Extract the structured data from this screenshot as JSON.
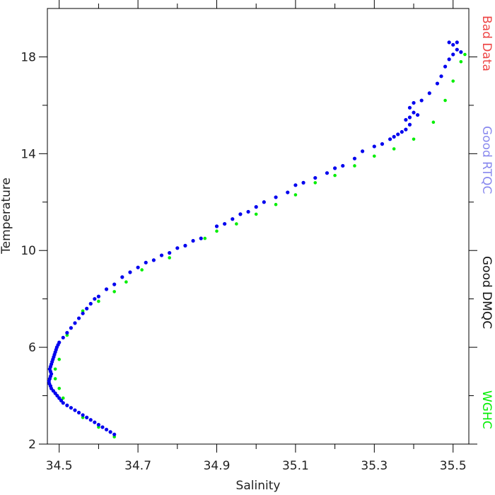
{
  "chart_data": {
    "type": "scatter",
    "xlabel": "Salinity",
    "ylabel": "Temperature",
    "xlim": [
      34.47,
      35.54
    ],
    "ylim": [
      2,
      20
    ],
    "xticks": [
      34.5,
      34.7,
      34.9,
      35.1,
      35.3,
      35.5
    ],
    "xtick_labels": [
      "34.5",
      "34.7",
      "34.9",
      "35.1",
      "35.3",
      "35.5"
    ],
    "x_minor_ticks": [
      34.6,
      34.8,
      35.0,
      35.2,
      35.4
    ],
    "yticks": [
      2,
      6,
      10,
      14,
      18
    ],
    "ytick_labels": [
      "2",
      "6",
      "10",
      "14",
      "18"
    ],
    "y_minor_ticks": [
      4,
      8,
      12,
      16
    ],
    "grid": false,
    "legend_position": "right-vertical",
    "series": [
      {
        "name": "Good RTQC",
        "color": "#0000ee",
        "points": [
          [
            34.64,
            2.4
          ],
          [
            34.63,
            2.5
          ],
          [
            34.62,
            2.6
          ],
          [
            34.61,
            2.7
          ],
          [
            34.6,
            2.8
          ],
          [
            34.59,
            2.9
          ],
          [
            34.58,
            3.0
          ],
          [
            34.57,
            3.1
          ],
          [
            34.56,
            3.2
          ],
          [
            34.55,
            3.3
          ],
          [
            34.54,
            3.4
          ],
          [
            34.53,
            3.5
          ],
          [
            34.52,
            3.6
          ],
          [
            34.51,
            3.7
          ],
          [
            34.505,
            3.8
          ],
          [
            34.5,
            3.9
          ],
          [
            34.495,
            4.0
          ],
          [
            34.49,
            4.1
          ],
          [
            34.485,
            4.2
          ],
          [
            34.48,
            4.3
          ],
          [
            34.478,
            4.4
          ],
          [
            34.475,
            4.5
          ],
          [
            34.474,
            4.6
          ],
          [
            34.476,
            4.7
          ],
          [
            34.478,
            4.8
          ],
          [
            34.48,
            4.9
          ],
          [
            34.478,
            5.0
          ],
          [
            34.476,
            5.1
          ],
          [
            34.478,
            5.2
          ],
          [
            34.48,
            5.3
          ],
          [
            34.482,
            5.4
          ],
          [
            34.484,
            5.5
          ],
          [
            34.486,
            5.6
          ],
          [
            34.488,
            5.7
          ],
          [
            34.49,
            5.8
          ],
          [
            34.492,
            5.9
          ],
          [
            34.494,
            6.0
          ],
          [
            34.497,
            6.1
          ],
          [
            34.5,
            6.2
          ],
          [
            34.51,
            6.4
          ],
          [
            34.52,
            6.6
          ],
          [
            34.53,
            6.8
          ],
          [
            34.54,
            7.0
          ],
          [
            34.55,
            7.2
          ],
          [
            34.56,
            7.4
          ],
          [
            34.57,
            7.6
          ],
          [
            34.58,
            7.8
          ],
          [
            34.59,
            8.0
          ],
          [
            34.6,
            8.1
          ],
          [
            34.62,
            8.4
          ],
          [
            34.64,
            8.6
          ],
          [
            34.66,
            8.9
          ],
          [
            34.68,
            9.1
          ],
          [
            34.7,
            9.3
          ],
          [
            34.72,
            9.5
          ],
          [
            34.74,
            9.6
          ],
          [
            34.76,
            9.8
          ],
          [
            34.78,
            9.9
          ],
          [
            34.8,
            10.1
          ],
          [
            34.82,
            10.2
          ],
          [
            34.84,
            10.4
          ],
          [
            34.86,
            10.5
          ],
          [
            34.9,
            11.0
          ],
          [
            34.92,
            11.1
          ],
          [
            34.94,
            11.3
          ],
          [
            34.96,
            11.5
          ],
          [
            34.98,
            11.6
          ],
          [
            35.0,
            11.8
          ],
          [
            35.02,
            12.0
          ],
          [
            35.05,
            12.2
          ],
          [
            35.08,
            12.4
          ],
          [
            35.1,
            12.7
          ],
          [
            35.12,
            12.8
          ],
          [
            35.15,
            13.0
          ],
          [
            35.18,
            13.2
          ],
          [
            35.2,
            13.4
          ],
          [
            35.22,
            13.5
          ],
          [
            35.25,
            13.8
          ],
          [
            35.27,
            14.1
          ],
          [
            35.3,
            14.3
          ],
          [
            35.32,
            14.4
          ],
          [
            35.34,
            14.6
          ],
          [
            35.35,
            14.7
          ],
          [
            35.36,
            14.8
          ],
          [
            35.37,
            14.9
          ],
          [
            35.38,
            15.0
          ],
          [
            35.39,
            15.2
          ],
          [
            35.38,
            15.4
          ],
          [
            35.39,
            15.5
          ],
          [
            35.4,
            15.7
          ],
          [
            35.39,
            15.9
          ],
          [
            35.4,
            16.1
          ],
          [
            35.41,
            15.6
          ],
          [
            35.42,
            16.2
          ],
          [
            35.44,
            16.5
          ],
          [
            35.46,
            16.9
          ],
          [
            35.47,
            17.2
          ],
          [
            35.48,
            17.6
          ],
          [
            35.49,
            17.9
          ],
          [
            35.5,
            18.1
          ],
          [
            35.51,
            18.3
          ],
          [
            35.5,
            18.5
          ],
          [
            35.49,
            18.6
          ],
          [
            35.51,
            18.6
          ],
          [
            35.52,
            18.2
          ]
        ]
      },
      {
        "name": "WGHC",
        "color": "#00ee00",
        "points": [
          [
            34.64,
            2.3
          ],
          [
            34.6,
            2.7
          ],
          [
            34.56,
            3.1
          ],
          [
            34.53,
            3.5
          ],
          [
            34.51,
            3.9
          ],
          [
            34.5,
            4.3
          ],
          [
            34.49,
            4.7
          ],
          [
            34.49,
            5.1
          ],
          [
            34.5,
            5.5
          ],
          [
            34.52,
            6.5
          ],
          [
            34.56,
            7.5
          ],
          [
            34.6,
            7.9
          ],
          [
            34.64,
            8.3
          ],
          [
            34.67,
            8.7
          ],
          [
            34.71,
            9.2
          ],
          [
            34.78,
            9.7
          ],
          [
            34.87,
            10.5
          ],
          [
            34.9,
            10.8
          ],
          [
            34.95,
            11.1
          ],
          [
            35.0,
            11.5
          ],
          [
            35.05,
            11.9
          ],
          [
            35.1,
            12.3
          ],
          [
            35.15,
            12.8
          ],
          [
            35.2,
            13.1
          ],
          [
            35.25,
            13.5
          ],
          [
            35.3,
            13.9
          ],
          [
            35.35,
            14.2
          ],
          [
            35.4,
            14.6
          ],
          [
            35.45,
            15.3
          ],
          [
            35.48,
            16.2
          ],
          [
            35.5,
            17.0
          ],
          [
            35.52,
            17.8
          ],
          [
            35.53,
            18.1
          ]
        ]
      }
    ],
    "legend": [
      {
        "label": "Bad Data",
        "color": "#ee4444"
      },
      {
        "label": "Good RTQC",
        "color": "#8888ee"
      },
      {
        "label": "Good DMQC",
        "color": "#111111"
      },
      {
        "label": "WGHC",
        "color": "#00ee00"
      }
    ]
  }
}
